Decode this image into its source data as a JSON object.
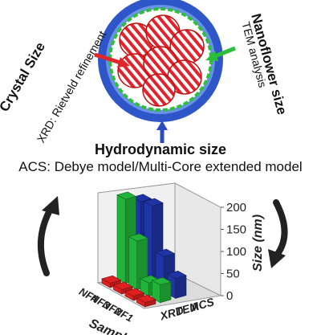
{
  "labels": {
    "crystal_title": "Crystal Size",
    "crystal_method": "XRD: Rietveld refinement",
    "nanoflower_title": "Nanoflower size",
    "nanoflower_method": "TEM analysis",
    "hydro_title": "Hydrodynamic size",
    "hydro_method": "ACS: Debye model/Multi-Core extended model"
  },
  "chart_data": {
    "type": "bar",
    "title": "",
    "zlabel": "Size (nm)",
    "z_ticks": [
      "0",
      "50",
      "100",
      "150",
      "200"
    ],
    "zlim": [
      0,
      200
    ],
    "samples_label": "Samples",
    "categories": [
      "NF1",
      "NF2",
      "NF3",
      "NF4"
    ],
    "methods": [
      "XRD",
      "TEM",
      "ACS"
    ],
    "series": [
      {
        "name": "XRD",
        "values": [
          10,
          10,
          10,
          10
        ]
      },
      {
        "name": "TEM",
        "values": [
          40,
          30,
          110,
          190
        ]
      },
      {
        "name": "ACS",
        "values": [
          45,
          80,
          180,
          175
        ]
      }
    ]
  },
  "colors": {
    "xrd": "#e02020",
    "tem": "#22b43a",
    "acs": "#1f35a6",
    "outer_ring": "#2f56c8",
    "inner_ring": "#5b86e0",
    "green_shell": "#2dbf3a",
    "arrow_red": "#e0282c",
    "arrow_green": "#2dbf3a",
    "arrow_blue": "#2b4bbf",
    "cycle_arrow": "#222222"
  }
}
